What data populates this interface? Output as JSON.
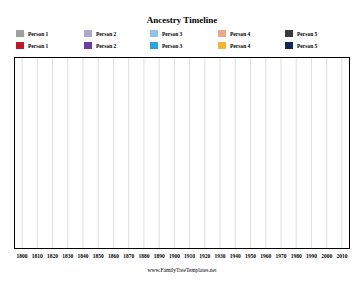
{
  "chart_data": {
    "type": "timeline",
    "title": "Ancestry Timeline",
    "series": [
      {
        "name": "Person 1",
        "color": "#a0a0a0"
      },
      {
        "name": "Person 2",
        "color": "#b0a8cc"
      },
      {
        "name": "Person 3",
        "color": "#8ec5de"
      },
      {
        "name": "Person 4",
        "color": "#eaa98b"
      },
      {
        "name": "Person 5",
        "color": "#3a3a3a"
      },
      {
        "name": "Person 1",
        "color": "#c0182a"
      },
      {
        "name": "Person 2",
        "color": "#6a3fa0"
      },
      {
        "name": "Person 3",
        "color": "#29a8d8"
      },
      {
        "name": "Person 4",
        "color": "#f2b72b"
      },
      {
        "name": "Person 5",
        "color": "#0e2a4e"
      }
    ],
    "xlim": [
      1795,
      2015
    ],
    "xticks": [
      1800,
      1810,
      1820,
      1830,
      1840,
      1850,
      1860,
      1870,
      1880,
      1890,
      1900,
      1910,
      1920,
      1930,
      1940,
      1950,
      1960,
      1970,
      1980,
      1990,
      2000,
      2010
    ],
    "grid": true,
    "tick_labels": "x",
    "caption": "www.FamilyTreeTemplates.net"
  }
}
